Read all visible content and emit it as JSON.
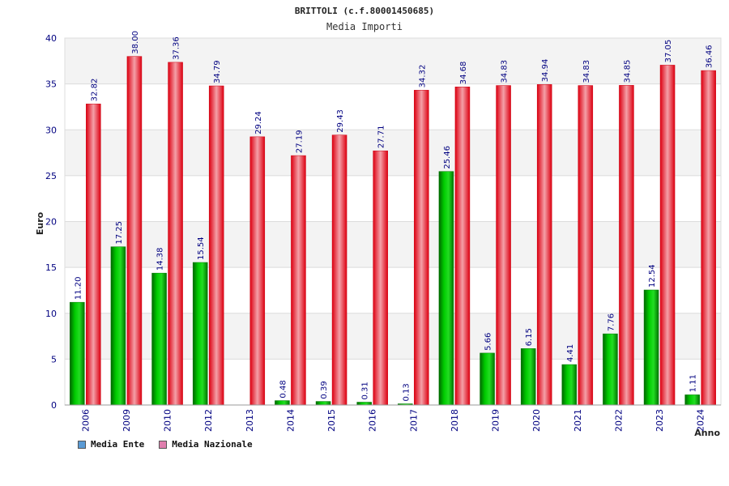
{
  "chart_data": {
    "type": "bar",
    "title": "BRITTOLI (c.f.80001450685)",
    "subtitle": "Media Importi",
    "xlabel": "Anno",
    "ylabel": "Euro",
    "ylim": [
      0,
      40
    ],
    "yticks": [
      0,
      5,
      10,
      15,
      20,
      25,
      30,
      35,
      40
    ],
    "grid": true,
    "legend_position": "bottom-left",
    "categories": [
      "2006",
      "2009",
      "2010",
      "2012",
      "2013",
      "2014",
      "2015",
      "2016",
      "2017",
      "2018",
      "2019",
      "2020",
      "2021",
      "2022",
      "2023",
      "2024"
    ],
    "series": [
      {
        "name": "Media Ente",
        "color": "#00aa00",
        "legend_color": "#5b9bd5",
        "values": [
          11.2,
          17.25,
          14.38,
          15.54,
          null,
          0.48,
          0.39,
          0.31,
          0.13,
          25.46,
          5.66,
          6.15,
          4.41,
          7.76,
          12.54,
          1.11
        ],
        "labels": [
          "11.20",
          "17.25",
          "14.38",
          "15.54",
          "",
          "0.48",
          "0.39",
          "0.31",
          "0.13",
          "25.46",
          "5.66",
          "6.15",
          "4.41",
          "7.76",
          "12.54",
          "1.11"
        ]
      },
      {
        "name": "Media Nazionale",
        "color": "#ee1122",
        "legend_color": "#e07fae",
        "values": [
          32.82,
          38.0,
          37.36,
          34.79,
          29.24,
          27.19,
          29.43,
          27.71,
          34.32,
          34.68,
          34.83,
          34.94,
          34.83,
          34.85,
          37.05,
          36.46
        ],
        "labels": [
          "32.82",
          "38.00",
          "37.36",
          "34.79",
          "29.24",
          "27.19",
          "29.43",
          "27.71",
          "34.32",
          "34.68",
          "34.83",
          "34.94",
          "34.83",
          "34.85",
          "37.05",
          "36.46"
        ]
      }
    ]
  }
}
